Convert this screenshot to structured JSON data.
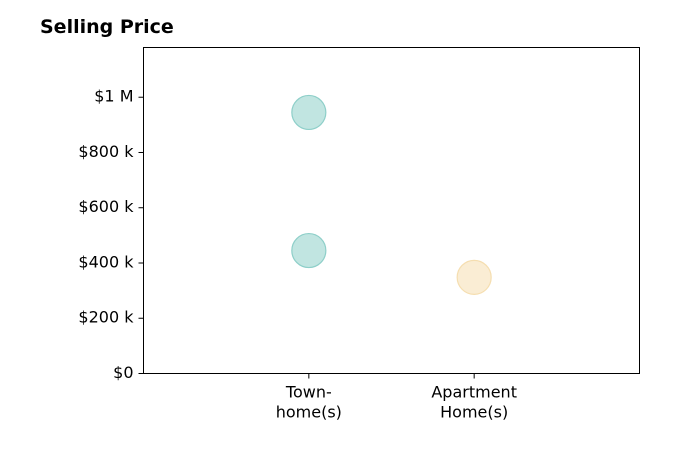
{
  "chart_data": {
    "type": "scatter",
    "title": "Selling Price",
    "xlabel": "",
    "ylabel": "",
    "categories": [
      {
        "lines": [
          "Town-",
          "home(s)"
        ]
      },
      {
        "lines": [
          "Apartment",
          "Home(s)"
        ]
      }
    ],
    "x_range": [
      -1,
      2
    ],
    "ylim": [
      0,
      1180000
    ],
    "y_ticks": [
      {
        "value": 0,
        "label": "$0"
      },
      {
        "value": 200000,
        "label": "$200 k"
      },
      {
        "value": 400000,
        "label": "$400 k"
      },
      {
        "value": 600000,
        "label": "$600 k"
      },
      {
        "value": 800000,
        "label": "$800 k"
      },
      {
        "value": 1000000,
        "label": "$1 M"
      }
    ],
    "points": [
      {
        "category_index": 0,
        "value": 945000,
        "color": "#8ecfc9"
      },
      {
        "category_index": 0,
        "value": 445000,
        "color": "#8ecfc9"
      },
      {
        "category_index": 1,
        "value": 348000,
        "color": "#f5deb0"
      }
    ],
    "grid": false,
    "legend": "none"
  }
}
